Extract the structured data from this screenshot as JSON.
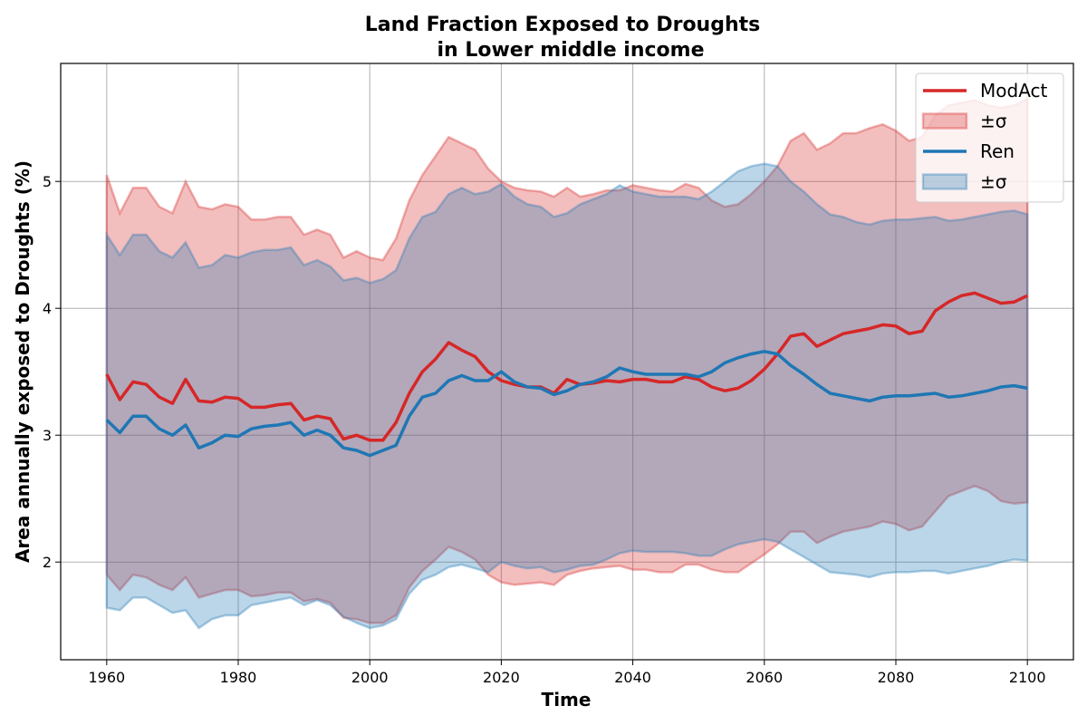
{
  "chart_data": {
    "type": "line",
    "title": "Land Fraction Exposed to Droughts",
    "subtitle": "in Lower middle income",
    "xlabel": "Time",
    "ylabel": "Area annually exposed to Droughts (%)",
    "xlim": [
      1953,
      2107
    ],
    "ylim": [
      1.23,
      5.93
    ],
    "xticks": [
      1960,
      1980,
      2000,
      2020,
      2040,
      2060,
      2080,
      2100
    ],
    "yticks": [
      2,
      3,
      4,
      5
    ],
    "grid": true,
    "legend_position": "top-right",
    "legend": [
      {
        "label": "ModAct",
        "kind": "line",
        "series": 0
      },
      {
        "label": "±σ",
        "kind": "band",
        "series": 0
      },
      {
        "label": "Ren",
        "kind": "line",
        "series": 1
      },
      {
        "label": "±σ",
        "kind": "band",
        "series": 1
      }
    ],
    "series": [
      {
        "name": "ModAct",
        "color": "#d62728",
        "x": [
          1960,
          1962,
          1964,
          1966,
          1968,
          1970,
          1972,
          1974,
          1976,
          1978,
          1980,
          1982,
          1984,
          1986,
          1988,
          1990,
          1992,
          1994,
          1996,
          1998,
          2000,
          2002,
          2004,
          2006,
          2008,
          2010,
          2012,
          2014,
          2016,
          2018,
          2020,
          2022,
          2024,
          2026,
          2028,
          2030,
          2032,
          2034,
          2036,
          2038,
          2040,
          2042,
          2044,
          2046,
          2048,
          2050,
          2052,
          2054,
          2056,
          2058,
          2060,
          2062,
          2064,
          2066,
          2068,
          2070,
          2072,
          2074,
          2076,
          2078,
          2080,
          2082,
          2084,
          2086,
          2088,
          2090,
          2092,
          2094,
          2096,
          2098,
          2100
        ],
        "y": [
          3.48,
          3.28,
          3.42,
          3.4,
          3.3,
          3.25,
          3.44,
          3.27,
          3.26,
          3.3,
          3.29,
          3.22,
          3.22,
          3.24,
          3.25,
          3.12,
          3.15,
          3.13,
          2.97,
          3.0,
          2.96,
          2.96,
          3.1,
          3.33,
          3.5,
          3.6,
          3.73,
          3.67,
          3.62,
          3.5,
          3.43,
          3.4,
          3.38,
          3.38,
          3.33,
          3.44,
          3.4,
          3.41,
          3.43,
          3.42,
          3.44,
          3.44,
          3.42,
          3.42,
          3.46,
          3.44,
          3.38,
          3.35,
          3.37,
          3.43,
          3.52,
          3.64,
          3.78,
          3.8,
          3.7,
          3.75,
          3.8,
          3.82,
          3.84,
          3.87,
          3.86,
          3.8,
          3.82,
          3.98,
          4.05,
          4.1,
          4.12,
          4.08,
          4.04,
          4.05,
          4.1
        ],
        "lower": [
          1.9,
          1.78,
          1.9,
          1.88,
          1.82,
          1.78,
          1.88,
          1.72,
          1.75,
          1.78,
          1.78,
          1.73,
          1.74,
          1.76,
          1.76,
          1.69,
          1.71,
          1.68,
          1.56,
          1.55,
          1.52,
          1.52,
          1.58,
          1.8,
          1.93,
          2.02,
          2.12,
          2.08,
          2.02,
          1.9,
          1.84,
          1.82,
          1.83,
          1.84,
          1.82,
          1.9,
          1.93,
          1.95,
          1.96,
          1.97,
          1.94,
          1.94,
          1.92,
          1.92,
          1.98,
          1.98,
          1.94,
          1.92,
          1.92,
          1.99,
          2.06,
          2.14,
          2.24,
          2.24,
          2.15,
          2.2,
          2.24,
          2.26,
          2.28,
          2.32,
          2.3,
          2.25,
          2.28,
          2.4,
          2.52,
          2.56,
          2.6,
          2.56,
          2.48,
          2.46,
          2.47
        ],
        "upper": [
          5.05,
          4.75,
          4.95,
          4.95,
          4.8,
          4.75,
          5.0,
          4.8,
          4.78,
          4.82,
          4.8,
          4.7,
          4.7,
          4.72,
          4.72,
          4.58,
          4.62,
          4.58,
          4.4,
          4.45,
          4.4,
          4.38,
          4.55,
          4.85,
          5.05,
          5.2,
          5.35,
          5.3,
          5.25,
          5.1,
          5.0,
          4.95,
          4.93,
          4.92,
          4.88,
          4.95,
          4.88,
          4.9,
          4.93,
          4.93,
          4.97,
          4.95,
          4.93,
          4.92,
          4.98,
          4.95,
          4.85,
          4.8,
          4.82,
          4.9,
          5.0,
          5.12,
          5.32,
          5.38,
          5.25,
          5.3,
          5.38,
          5.38,
          5.42,
          5.45,
          5.4,
          5.32,
          5.35,
          5.52,
          5.6,
          5.62,
          5.64,
          5.6,
          5.58,
          5.6,
          5.65
        ]
      },
      {
        "name": "Ren",
        "color": "#1f77b4",
        "x": [
          1960,
          1962,
          1964,
          1966,
          1968,
          1970,
          1972,
          1974,
          1976,
          1978,
          1980,
          1982,
          1984,
          1986,
          1988,
          1990,
          1992,
          1994,
          1996,
          1998,
          2000,
          2002,
          2004,
          2006,
          2008,
          2010,
          2012,
          2014,
          2016,
          2018,
          2020,
          2022,
          2024,
          2026,
          2028,
          2030,
          2032,
          2034,
          2036,
          2038,
          2040,
          2042,
          2044,
          2046,
          2048,
          2050,
          2052,
          2054,
          2056,
          2058,
          2060,
          2062,
          2064,
          2066,
          2068,
          2070,
          2072,
          2074,
          2076,
          2078,
          2080,
          2082,
          2084,
          2086,
          2088,
          2090,
          2092,
          2094,
          2096,
          2098,
          2100
        ],
        "y": [
          3.12,
          3.02,
          3.15,
          3.15,
          3.05,
          3.0,
          3.08,
          2.9,
          2.94,
          3.0,
          2.99,
          3.05,
          3.07,
          3.08,
          3.1,
          3.0,
          3.04,
          3.0,
          2.9,
          2.88,
          2.84,
          2.88,
          2.92,
          3.15,
          3.3,
          3.33,
          3.43,
          3.47,
          3.43,
          3.43,
          3.5,
          3.42,
          3.38,
          3.37,
          3.32,
          3.35,
          3.4,
          3.42,
          3.46,
          3.53,
          3.5,
          3.48,
          3.48,
          3.48,
          3.48,
          3.46,
          3.5,
          3.57,
          3.61,
          3.64,
          3.66,
          3.64,
          3.55,
          3.48,
          3.4,
          3.33,
          3.31,
          3.29,
          3.27,
          3.3,
          3.31,
          3.31,
          3.32,
          3.33,
          3.3,
          3.31,
          3.33,
          3.35,
          3.38,
          3.39,
          3.37
        ],
        "lower": [
          1.64,
          1.62,
          1.72,
          1.72,
          1.66,
          1.6,
          1.62,
          1.48,
          1.55,
          1.58,
          1.58,
          1.66,
          1.68,
          1.7,
          1.72,
          1.66,
          1.7,
          1.66,
          1.57,
          1.52,
          1.48,
          1.5,
          1.55,
          1.75,
          1.86,
          1.9,
          1.96,
          1.98,
          1.95,
          1.92,
          2.0,
          1.97,
          1.95,
          1.96,
          1.92,
          1.94,
          1.97,
          1.98,
          2.02,
          2.07,
          2.09,
          2.08,
          2.08,
          2.08,
          2.07,
          2.05,
          2.05,
          2.1,
          2.14,
          2.16,
          2.18,
          2.16,
          2.1,
          2.04,
          1.98,
          1.92,
          1.91,
          1.9,
          1.88,
          1.91,
          1.92,
          1.92,
          1.93,
          1.93,
          1.91,
          1.93,
          1.95,
          1.97,
          2.0,
          2.02,
          2.01
        ],
        "upper": [
          4.58,
          4.42,
          4.58,
          4.58,
          4.45,
          4.4,
          4.52,
          4.32,
          4.34,
          4.42,
          4.4,
          4.44,
          4.46,
          4.46,
          4.48,
          4.34,
          4.38,
          4.33,
          4.22,
          4.24,
          4.2,
          4.23,
          4.3,
          4.55,
          4.72,
          4.76,
          4.9,
          4.95,
          4.9,
          4.92,
          4.98,
          4.88,
          4.82,
          4.8,
          4.72,
          4.75,
          4.82,
          4.86,
          4.9,
          4.97,
          4.92,
          4.9,
          4.88,
          4.88,
          4.88,
          4.86,
          4.92,
          5.0,
          5.08,
          5.12,
          5.14,
          5.12,
          5.0,
          4.92,
          4.82,
          4.74,
          4.72,
          4.68,
          4.66,
          4.69,
          4.7,
          4.7,
          4.71,
          4.72,
          4.69,
          4.7,
          4.72,
          4.74,
          4.76,
          4.77,
          4.74
        ]
      }
    ]
  }
}
